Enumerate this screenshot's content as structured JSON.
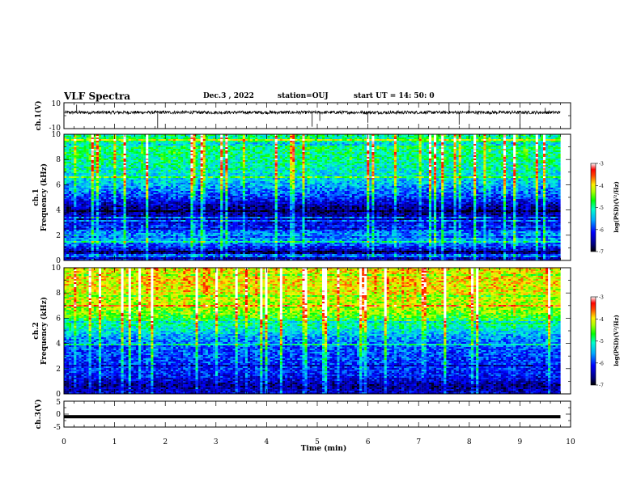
{
  "header": {
    "title": "VLF Spectra",
    "date": "Dec.3 , 2022",
    "station": "station=OUJ",
    "start": "start UT = 14: 50: 0"
  },
  "chart_data": [
    {
      "name": "ch1-waveform",
      "type": "line",
      "ylabel": "ch.1(V)",
      "ylim": [
        -10,
        10
      ],
      "ytick_labels": [
        "10",
        "-10"
      ],
      "baseline": 2.5,
      "noise": 1.2,
      "spikes": [
        {
          "x": 0.25,
          "y": 8.5
        },
        {
          "x": 1.85,
          "y": -9.5
        },
        {
          "x": 4.9,
          "y": -8.5
        },
        {
          "x": 5.05,
          "y": -4.0
        },
        {
          "x": 6.0,
          "y": -5.5
        },
        {
          "x": 7.6,
          "y": 9.0
        },
        {
          "x": 7.8,
          "y": -7.0
        },
        {
          "x": 8.0,
          "y": 7.5
        },
        {
          "x": 9.0,
          "y": -9.5
        },
        {
          "x": 9.5,
          "y": 6.0
        }
      ]
    },
    {
      "name": "ch1-spectrogram",
      "type": "heatmap",
      "ylabel": "ch.1",
      "ylabel2": "Frequency (kHz)",
      "ylim": [
        0,
        10
      ],
      "ytick_labels": [
        "0",
        "2",
        "4",
        "6",
        "8",
        "10"
      ],
      "colorbar": {
        "label": "log(PSD)(V²/Hz)",
        "range": [
          -7,
          -3
        ],
        "tick_labels": [
          "-3",
          "-4",
          "-5",
          "-6",
          "-7"
        ]
      },
      "profile": [
        {
          "f": 0.0,
          "v": -6.3
        },
        {
          "f": 0.6,
          "v": -6.6
        },
        {
          "f": 1.2,
          "v": -5.9
        },
        {
          "f": 1.8,
          "v": -5.5
        },
        {
          "f": 2.5,
          "v": -5.9
        },
        {
          "f": 3.2,
          "v": -6.5
        },
        {
          "f": 4.2,
          "v": -6.6
        },
        {
          "f": 5.0,
          "v": -6.0
        },
        {
          "f": 6.0,
          "v": -5.5
        },
        {
          "f": 7.0,
          "v": -5.2
        },
        {
          "f": 8.0,
          "v": -5.0
        },
        {
          "f": 9.0,
          "v": -4.9
        },
        {
          "f": 10.0,
          "v": -5.0
        }
      ]
    },
    {
      "name": "ch2-spectrogram",
      "type": "heatmap",
      "ylabel": "ch.2",
      "ylabel2": "Frequency (kHz)",
      "ylim": [
        0,
        10
      ],
      "ytick_labels": [
        "0",
        "2",
        "4",
        "6",
        "8",
        "10"
      ],
      "colorbar": {
        "label": "log(PSD)(V²/Hz)",
        "range": [
          -7,
          -3
        ],
        "tick_labels": [
          "-3",
          "-4",
          "-5",
          "-6",
          "-7"
        ]
      },
      "profile": [
        {
          "f": 0.0,
          "v": -6.3
        },
        {
          "f": 0.6,
          "v": -6.6
        },
        {
          "f": 1.5,
          "v": -6.1
        },
        {
          "f": 2.5,
          "v": -6.0
        },
        {
          "f": 3.5,
          "v": -5.9
        },
        {
          "f": 4.5,
          "v": -5.6
        },
        {
          "f": 5.5,
          "v": -5.0
        },
        {
          "f": 6.3,
          "v": -4.5
        },
        {
          "f": 7.0,
          "v": -4.3
        },
        {
          "f": 8.0,
          "v": -4.1
        },
        {
          "f": 9.0,
          "v": -4.0
        },
        {
          "f": 10.0,
          "v": -4.1
        }
      ]
    },
    {
      "name": "ch3-waveform",
      "type": "line",
      "ylabel": "ch.3(V)",
      "ylim": [
        -5,
        5
      ],
      "ytick_labels": [
        "5",
        "0",
        "-5"
      ],
      "value": -1.0,
      "x": [
        0,
        9.8
      ]
    }
  ],
  "xaxis": {
    "label": "Time (min)",
    "range": [
      0,
      10
    ],
    "tick_labels": [
      "0",
      "1",
      "2",
      "3",
      "4",
      "5",
      "6",
      "7",
      "8",
      "9",
      "10"
    ],
    "data_end": 9.8
  }
}
